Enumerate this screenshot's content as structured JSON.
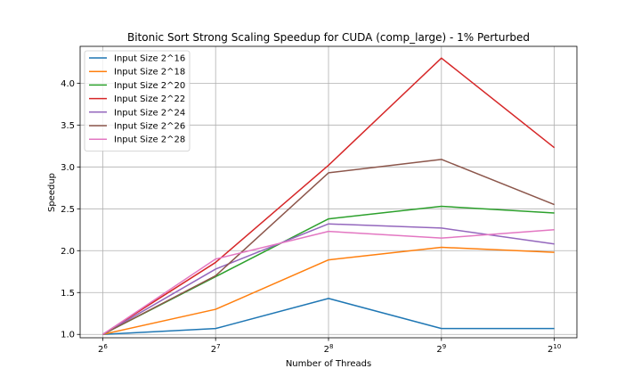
{
  "chart_data": {
    "type": "line",
    "title": "Bitonic Sort Strong Scaling Speedup for CUDA (comp_large) - 1% Perturbed",
    "xlabel": "Number of Threads",
    "ylabel": "Speedup",
    "x_scale": "log2",
    "x": [
      64,
      128,
      256,
      512,
      1024
    ],
    "x_tick_labels": [
      {
        "base": "2",
        "exp": "6"
      },
      {
        "base": "2",
        "exp": "7"
      },
      {
        "base": "2",
        "exp": "8"
      },
      {
        "base": "2",
        "exp": "9"
      },
      {
        "base": "2",
        "exp": "10"
      }
    ],
    "y_ticks": [
      1.0,
      1.5,
      2.0,
      2.5,
      3.0,
      3.5,
      4.0
    ],
    "y_tick_labels": [
      "1.0",
      "1.5",
      "2.0",
      "2.5",
      "3.0",
      "3.5",
      "4.0"
    ],
    "ylim": [
      0.96,
      4.44
    ],
    "grid": true,
    "legend_position": "top-left",
    "series": [
      {
        "name": "Input Size 2^16",
        "color": "#1f77b4",
        "values": [
          1.0,
          1.07,
          1.43,
          1.07,
          1.07
        ]
      },
      {
        "name": "Input Size 2^18",
        "color": "#ff7f0e",
        "values": [
          1.0,
          1.3,
          1.89,
          2.04,
          1.98
        ]
      },
      {
        "name": "Input Size 2^20",
        "color": "#2ca02c",
        "values": [
          1.0,
          1.69,
          2.38,
          2.53,
          2.45
        ]
      },
      {
        "name": "Input Size 2^22",
        "color": "#d62728",
        "values": [
          1.0,
          1.86,
          3.02,
          4.3,
          3.23
        ]
      },
      {
        "name": "Input Size 2^24",
        "color": "#9467bd",
        "values": [
          1.0,
          1.78,
          2.32,
          2.27,
          2.08
        ]
      },
      {
        "name": "Input Size 2^26",
        "color": "#8c564b",
        "values": [
          1.0,
          1.7,
          2.93,
          3.09,
          2.55
        ]
      },
      {
        "name": "Input Size 2^28",
        "color": "#e377c2",
        "values": [
          1.0,
          1.9,
          2.23,
          2.15,
          2.25
        ]
      }
    ]
  }
}
